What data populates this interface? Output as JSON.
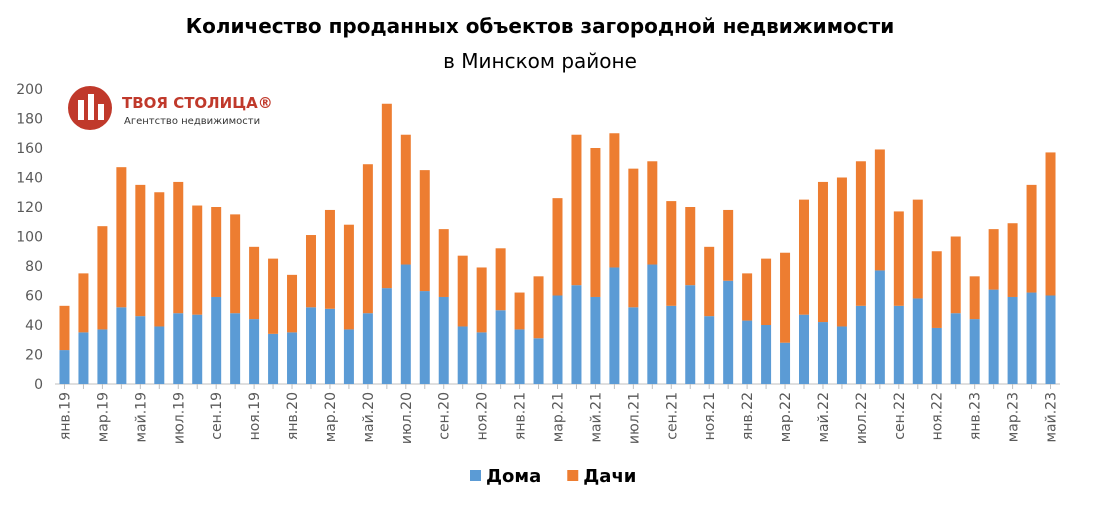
{
  "chart_data": {
    "type": "stacked-bar",
    "title": "Количество проданных объектов загородной недвижимости",
    "subtitle": "в Минском районе",
    "logo": {
      "name": "ТВОЯ СТОЛИЦА®",
      "tagline": "Агентство недвижимости"
    },
    "categories": [
      "янв.19",
      null,
      "мар.19",
      null,
      "май.19",
      null,
      "июл.19",
      null,
      "сен.19",
      null,
      "ноя.19",
      null,
      "янв.20",
      null,
      "мар.20",
      null,
      "май.20",
      null,
      "июл.20",
      null,
      "сен.20",
      null,
      "ноя.20",
      null,
      "янв.21",
      null,
      "мар.21",
      null,
      "май.21",
      null,
      "июл.21",
      null,
      "сен.21",
      null,
      "ноя.21",
      null,
      "янв.22",
      null,
      "мар.22",
      null,
      "май.22",
      null,
      "июл.22",
      null,
      "сен.22",
      null,
      "ноя.22",
      null,
      "янв.23",
      null,
      "мар.23",
      null,
      "май.23"
    ],
    "series": [
      {
        "name": "Дома",
        "color": "#5b9bd5",
        "values": [
          23,
          35,
          37,
          52,
          46,
          39,
          48,
          47,
          59,
          48,
          44,
          34,
          35,
          52,
          51,
          37,
          48,
          65,
          81,
          63,
          59,
          39,
          35,
          50,
          37,
          31,
          60,
          67,
          59,
          79,
          52,
          81,
          53,
          67,
          46,
          70,
          43,
          40,
          28,
          47,
          42,
          39,
          53,
          77,
          53,
          58,
          38,
          48,
          44,
          64,
          59,
          62,
          60
        ]
      },
      {
        "name": "Дачи",
        "color": "#ed7d31",
        "values": [
          30,
          40,
          70,
          95,
          89,
          91,
          89,
          74,
          61,
          67,
          49,
          51,
          39,
          49,
          67,
          71,
          101,
          125,
          88,
          82,
          46,
          48,
          44,
          42,
          25,
          42,
          66,
          102,
          101,
          91,
          94,
          70,
          71,
          53,
          47,
          48,
          32,
          45,
          61,
          78,
          95,
          101,
          98,
          82,
          64,
          67,
          52,
          52,
          29,
          41,
          50,
          73,
          97
        ]
      }
    ],
    "ylim": [
      0,
      200
    ],
    "yticks": [
      0,
      20,
      40,
      60,
      80,
      100,
      120,
      140,
      160,
      180,
      200
    ],
    "grid": false,
    "legend": "bottom"
  }
}
